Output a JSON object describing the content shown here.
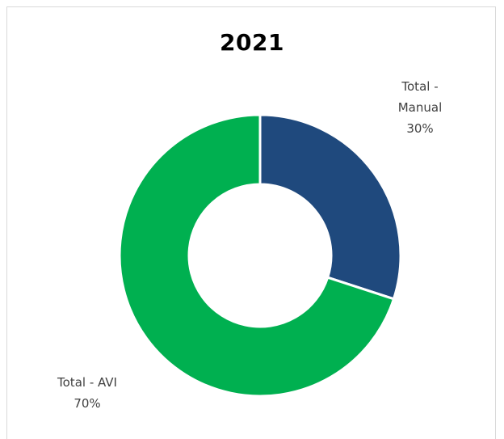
{
  "chart_data": {
    "type": "pie",
    "variant": "donut",
    "title": "2021",
    "slices": [
      {
        "label_lines": [
          "Total -",
          "Manual"
        ],
        "value_label": "30%",
        "value": 30,
        "color": "#1f497d"
      },
      {
        "label_lines": [
          "Total - AVI"
        ],
        "value_label": "70%",
        "value": 70,
        "color": "#00b050"
      }
    ],
    "legend": "none",
    "start_angle_deg": 0,
    "direction": "clockwise"
  },
  "colors": {
    "background": "#ffffff",
    "slice_border": "#ffffff",
    "label_text": "#404040"
  }
}
